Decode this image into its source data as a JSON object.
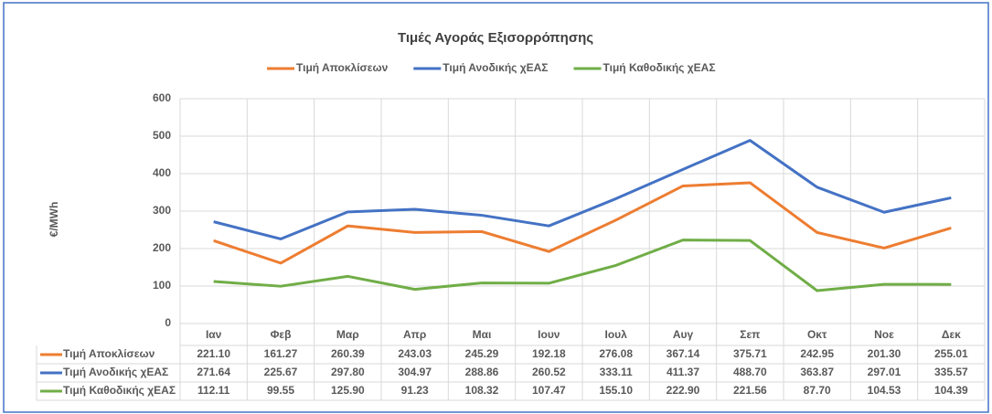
{
  "chart_data": {
    "type": "line",
    "title": "Τιμές Αγοράς Εξισορρόπησης",
    "y_label": "€/MWh",
    "categories": [
      "Ιαν",
      "Φεβ",
      "Μαρ",
      "Απρ",
      "Μαι",
      "Ιουν",
      "Ιουλ",
      "Αυγ",
      "Σεπ",
      "Οκτ",
      "Νοε",
      "Δεκ"
    ],
    "series": [
      {
        "name": "Τιμή Αποκλίσεων",
        "color": "#ED7D31",
        "values": [
          221.1,
          161.27,
          260.39,
          243.03,
          245.29,
          192.18,
          276.08,
          367.14,
          375.71,
          242.95,
          201.3,
          255.01
        ],
        "value_labels": [
          "221.10",
          "161.27",
          "260.39",
          "243.03",
          "245.29",
          "192.18",
          "276.08",
          "367.14",
          "375.71",
          "242.95",
          "201.30",
          "255.01"
        ]
      },
      {
        "name": "Τιμή Ανοδικής χΕΑΣ",
        "color": "#4472C4",
        "values": [
          271.64,
          225.67,
          297.8,
          304.97,
          288.86,
          260.52,
          333.11,
          411.37,
          488.7,
          363.87,
          297.01,
          335.57
        ],
        "value_labels": [
          "271.64",
          "225.67",
          "297.80",
          "304.97",
          "288.86",
          "260.52",
          "333.11",
          "411.37",
          "488.70",
          "363.87",
          "297.01",
          "335.57"
        ]
      },
      {
        "name": "Τιμή Καθοδικής χΕΑΣ",
        "color": "#70AD47",
        "values": [
          112.11,
          99.55,
          125.9,
          91.23,
          108.32,
          107.47,
          155.1,
          222.9,
          221.56,
          87.7,
          104.53,
          104.39
        ],
        "value_labels": [
          "112.11",
          "99.55",
          "125.90",
          "91.23",
          "108.32",
          "107.47",
          "155.10",
          "222.90",
          "221.56",
          "87.70",
          "104.53",
          "104.39"
        ]
      }
    ],
    "ylim": [
      0,
      600
    ],
    "yticks": [
      0,
      100,
      200,
      300,
      400,
      500,
      600
    ],
    "grid": true,
    "legend": "top"
  }
}
